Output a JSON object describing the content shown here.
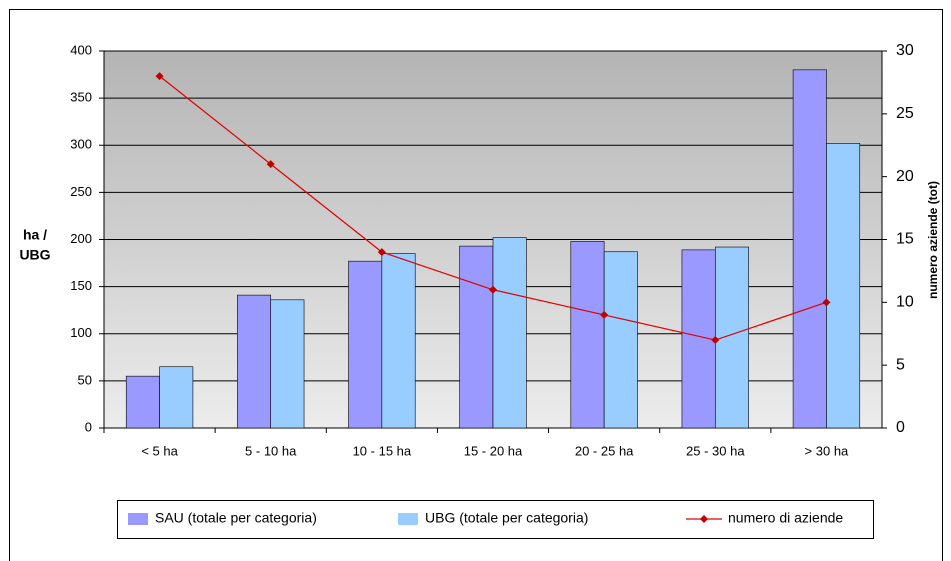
{
  "chart_data": {
    "type": "bar_line",
    "y_label": [
      "ha /",
      "UBG"
    ],
    "y2_label": "numero aziende (tot)",
    "categories": [
      "< 5 ha",
      "5 - 10 ha",
      "10 - 15 ha",
      "15 - 20 ha",
      "20 - 25 ha",
      "25 - 30 ha",
      "> 30 ha"
    ],
    "series": [
      {
        "name": "SAU (totale per categoria)",
        "type": "bar",
        "color": "#9999ff",
        "values": [
          55,
          141,
          177,
          193,
          198,
          189,
          380
        ]
      },
      {
        "name": "UBG (totale per categoria)",
        "type": "bar",
        "color": "#99ccff",
        "values": [
          65,
          136,
          185,
          202,
          187,
          192,
          302
        ]
      },
      {
        "name": "numero di aziende",
        "type": "line",
        "axis": "y2",
        "color": "#e00000",
        "values": [
          28,
          21,
          14,
          11,
          9,
          7,
          10
        ]
      }
    ],
    "ylim": [
      0,
      400
    ],
    "yticks": [
      0,
      50,
      100,
      150,
      200,
      250,
      300,
      350,
      400
    ],
    "y2lim": [
      0,
      30
    ],
    "y2ticks": [
      0,
      5,
      10,
      15,
      20,
      25,
      30
    ],
    "grid": true,
    "legend": "bottom"
  }
}
